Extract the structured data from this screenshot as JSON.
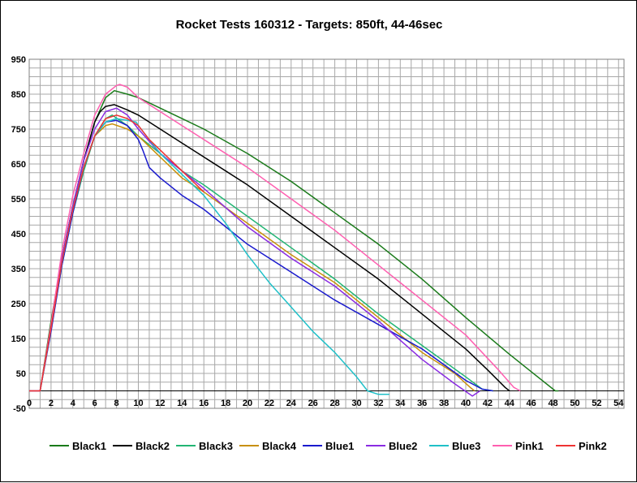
{
  "chart_data": {
    "type": "line",
    "title": "Rocket Tests 160312 - Targets: 850ft, 44-46sec",
    "xlabel": "",
    "ylabel": "",
    "xlim": [
      0,
      54.5
    ],
    "ylim": [
      -50,
      950
    ],
    "x_ticks": [
      0,
      2,
      4,
      6,
      8,
      10,
      12,
      14,
      16,
      18,
      20,
      22,
      24,
      26,
      28,
      30,
      32,
      34,
      36,
      38,
      40,
      42,
      44,
      46,
      48,
      50,
      52,
      54
    ],
    "y_ticks": [
      -50,
      50,
      150,
      250,
      350,
      450,
      550,
      650,
      750,
      850,
      950
    ],
    "grid": true,
    "legend_position": "bottom",
    "series": [
      {
        "name": "Black1",
        "color": "#1a7a1a",
        "x": [
          0,
          1,
          2,
          3,
          4,
          5,
          6,
          7,
          7.8,
          9,
          10,
          12,
          14,
          16,
          20,
          24,
          28,
          32,
          36,
          40,
          44,
          46,
          48.2,
          48.5
        ],
        "y": [
          0,
          0,
          200,
          380,
          530,
          660,
          770,
          840,
          860,
          850,
          840,
          810,
          780,
          750,
          680,
          600,
          510,
          420,
          320,
          210,
          105,
          55,
          0,
          0
        ]
      },
      {
        "name": "Black2",
        "color": "#000000",
        "x": [
          0,
          1,
          2,
          3,
          4,
          5,
          6,
          6.5,
          7,
          7.8,
          9,
          10,
          12,
          14,
          16,
          20,
          24,
          28,
          32,
          36,
          40,
          42,
          43.6,
          44
        ],
        "y": [
          0,
          0,
          180,
          380,
          530,
          660,
          770,
          800,
          815,
          820,
          805,
          790,
          750,
          710,
          670,
          590,
          500,
          410,
          320,
          220,
          120,
          60,
          10,
          0
        ]
      },
      {
        "name": "Black3",
        "color": "#22b573",
        "x": [
          0,
          1,
          2,
          3,
          4,
          5,
          6,
          7,
          7.6,
          9,
          10,
          12,
          14,
          16,
          20,
          24,
          28,
          32,
          36,
          40,
          41.5,
          42.5
        ],
        "y": [
          0,
          0,
          180,
          360,
          510,
          630,
          730,
          780,
          790,
          760,
          730,
          680,
          630,
          590,
          500,
          410,
          320,
          220,
          130,
          40,
          5,
          0
        ]
      },
      {
        "name": "Black4",
        "color": "#c8900a",
        "x": [
          0,
          1,
          2,
          3,
          4,
          5,
          6,
          7,
          7.6,
          9,
          10,
          12,
          14,
          16,
          20,
          24,
          28,
          32,
          36,
          39,
          40.4,
          40.8
        ],
        "y": [
          0,
          0,
          180,
          370,
          520,
          640,
          730,
          760,
          765,
          750,
          730,
          670,
          610,
          570,
          480,
          390,
          310,
          210,
          110,
          50,
          10,
          0
        ]
      },
      {
        "name": "Blue1",
        "color": "#1a1acd",
        "x": [
          0,
          1,
          2,
          3,
          4,
          5,
          6,
          7,
          8,
          9,
          10,
          10.4,
          11,
          12,
          14,
          16,
          20,
          24,
          28,
          32,
          36,
          40,
          41.5,
          42.5
        ],
        "y": [
          0,
          0,
          170,
          360,
          510,
          640,
          730,
          770,
          775,
          760,
          720,
          690,
          640,
          610,
          560,
          520,
          420,
          340,
          260,
          190,
          120,
          30,
          5,
          0
        ]
      },
      {
        "name": "Blue2",
        "color": "#8a2be2",
        "x": [
          0,
          1,
          2,
          3,
          4,
          5,
          6,
          7,
          8,
          9,
          10,
          12,
          14,
          16,
          20,
          24,
          28,
          32,
          36,
          39,
          40.6,
          41.3
        ],
        "y": [
          0,
          0,
          180,
          380,
          530,
          660,
          750,
          800,
          810,
          790,
          750,
          680,
          630,
          580,
          470,
          380,
          300,
          200,
          90,
          20,
          -15,
          0
        ]
      },
      {
        "name": "Blue3",
        "color": "#20c0c8",
        "x": [
          0,
          1,
          2,
          3,
          4,
          5,
          6,
          7,
          8,
          9,
          9.8,
          10,
          11,
          12,
          14,
          16,
          18,
          20,
          22,
          24,
          26,
          28,
          30,
          31,
          32,
          33
        ],
        "y": [
          0,
          0,
          180,
          370,
          520,
          640,
          730,
          770,
          780,
          775,
          770,
          760,
          720,
          680,
          620,
          560,
          480,
          390,
          310,
          240,
          170,
          110,
          40,
          0,
          -10,
          -10
        ]
      },
      {
        "name": "Pink1",
        "color": "#ff5fb0",
        "x": [
          0,
          1,
          2,
          3,
          4,
          5,
          6,
          7,
          8,
          8.3,
          9,
          10,
          12,
          14,
          16,
          20,
          24,
          28,
          32,
          36,
          40,
          43,
          44.4,
          45
        ],
        "y": [
          0,
          0,
          190,
          400,
          560,
          680,
          790,
          850,
          875,
          878,
          870,
          840,
          800,
          760,
          720,
          640,
          550,
          460,
          360,
          260,
          160,
          60,
          10,
          0
        ]
      },
      {
        "name": "Pink2",
        "color": "#ee3333",
        "x": [
          0,
          1,
          2,
          3,
          4,
          5,
          6,
          7,
          8,
          9,
          10,
          11,
          12,
          13,
          14,
          15,
          16
        ],
        "y": [
          0,
          0,
          180,
          370,
          520,
          640,
          730,
          780,
          790,
          780,
          760,
          720,
          690,
          660,
          630,
          600,
          570
        ]
      }
    ]
  }
}
